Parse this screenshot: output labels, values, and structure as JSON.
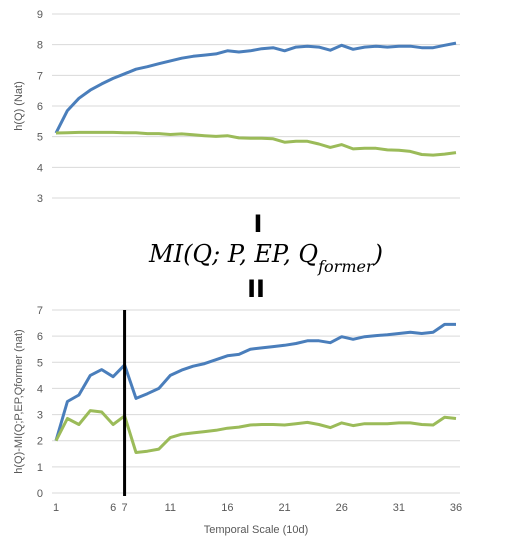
{
  "colors": {
    "blue": "#4a7ebb",
    "green": "#9bbb59",
    "marker_red": "#c0504d",
    "axis": "#d9d9d9",
    "text": "#595959"
  },
  "annotations": {
    "separator_top": "I",
    "formula": "MI(Q; P, EP, Q",
    "formula_sub": "former",
    "formula_close": ")",
    "separator_bottom": "II"
  },
  "chart_data": [
    {
      "type": "line",
      "ylabel": "h(Q) (Nat)",
      "ylim": [
        3,
        9
      ],
      "yticks": [
        3,
        4,
        5,
        6,
        7,
        8,
        9
      ],
      "x": [
        1,
        2,
        3,
        4,
        5,
        6,
        7,
        8,
        9,
        10,
        11,
        12,
        13,
        14,
        15,
        16,
        17,
        18,
        19,
        20,
        21,
        22,
        23,
        24,
        25,
        26,
        27,
        28,
        29,
        30,
        31,
        32,
        33,
        34,
        35,
        36
      ],
      "series": [
        {
          "color": "#4a7ebb",
          "values": [
            5.12,
            5.85,
            6.25,
            6.52,
            6.72,
            6.9,
            7.05,
            7.2,
            7.28,
            7.38,
            7.47,
            7.56,
            7.62,
            7.66,
            7.7,
            7.8,
            7.76,
            7.8,
            7.87,
            7.9,
            7.8,
            7.92,
            7.95,
            7.92,
            7.82,
            7.98,
            7.85,
            7.92,
            7.95,
            7.92,
            7.95,
            7.95,
            7.9,
            7.9,
            7.98,
            8.05
          ]
        },
        {
          "color": "#9bbb59",
          "values": [
            5.12,
            5.13,
            5.14,
            5.14,
            5.14,
            5.14,
            5.13,
            5.13,
            5.1,
            5.1,
            5.07,
            5.09,
            5.06,
            5.03,
            5.01,
            5.03,
            4.96,
            4.95,
            4.95,
            4.93,
            4.82,
            4.85,
            4.85,
            4.76,
            4.65,
            4.74,
            4.6,
            4.62,
            4.62,
            4.57,
            4.56,
            4.52,
            4.42,
            4.4,
            4.43,
            4.48
          ]
        }
      ]
    },
    {
      "type": "line",
      "xlabel": "Temporal Scale (10d)",
      "ylabel": "h(Q)-MI(Q;P,EP,Qformer  (nat)",
      "ylim": [
        0,
        7
      ],
      "yticks": [
        0,
        1,
        2,
        3,
        4,
        5,
        6,
        7
      ],
      "xticks": [
        "1",
        "6",
        "7",
        "11",
        "16",
        "21",
        "26",
        "31",
        "36"
      ],
      "highlight_x": 7,
      "x": [
        1,
        2,
        3,
        4,
        5,
        6,
        7,
        8,
        9,
        10,
        11,
        12,
        13,
        14,
        15,
        16,
        17,
        18,
        19,
        20,
        21,
        22,
        23,
        24,
        25,
        26,
        27,
        28,
        29,
        30,
        31,
        32,
        33,
        34,
        35,
        36
      ],
      "series": [
        {
          "color": "#4a7ebb",
          "values": [
            2.0,
            3.5,
            3.75,
            4.5,
            4.72,
            4.45,
            4.9,
            3.62,
            3.8,
            4.0,
            4.5,
            4.7,
            4.85,
            4.95,
            5.1,
            5.25,
            5.3,
            5.5,
            5.55,
            5.6,
            5.65,
            5.72,
            5.82,
            5.82,
            5.75,
            5.98,
            5.88,
            5.98,
            6.02,
            6.05,
            6.1,
            6.15,
            6.1,
            6.15,
            6.45,
            6.45
          ]
        },
        {
          "color": "#9bbb59",
          "values": [
            2.0,
            2.85,
            2.62,
            3.15,
            3.1,
            2.62,
            2.95,
            1.55,
            1.6,
            1.68,
            2.12,
            2.25,
            2.3,
            2.35,
            2.4,
            2.48,
            2.52,
            2.6,
            2.62,
            2.62,
            2.6,
            2.65,
            2.7,
            2.62,
            2.5,
            2.68,
            2.58,
            2.65,
            2.65,
            2.65,
            2.68,
            2.68,
            2.62,
            2.6,
            2.9,
            2.85
          ]
        }
      ]
    }
  ]
}
